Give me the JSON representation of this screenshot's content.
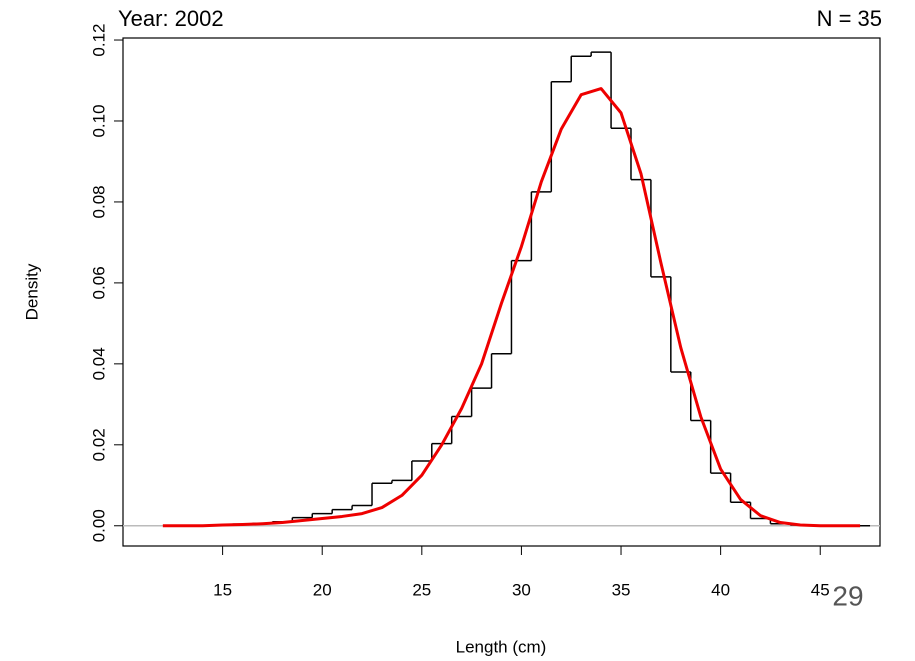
{
  "chart_data": {
    "type": "histogram",
    "title": "Year: 2002",
    "annotation": "N = 35",
    "x_label": "Length (cm)",
    "y_label": "Density",
    "bins": [
      12.5,
      13.5,
      14.5,
      15.5,
      16.5,
      17.5,
      18.5,
      19.5,
      20.5,
      21.5,
      22.5,
      23.5,
      24.5,
      25.5,
      26.5,
      27.5,
      28.5,
      29.5,
      30.5,
      31.5,
      32.5,
      33.5,
      34.5,
      35.5,
      36.5,
      37.5,
      38.5,
      39.5,
      40.5,
      41.5,
      42.5,
      43.5,
      44.5,
      45.5,
      46.5,
      47.5
    ],
    "values": [
      0,
      0,
      0.0002,
      0.0004,
      0.0006,
      0.001,
      0.002,
      0.003,
      0.004,
      0.005,
      0.0105,
      0.0112,
      0.016,
      0.0203,
      0.027,
      0.034,
      0.0425,
      0.0655,
      0.0825,
      0.1097,
      0.116,
      0.117,
      0.0982,
      0.0855,
      0.0615,
      0.038,
      0.026,
      0.013,
      0.0058,
      0.0018,
      0.0005,
      0.0002,
      0,
      0,
      0
    ],
    "color": "#000000",
    "overlay": {
      "type": "line",
      "color": "#ee0000",
      "x": [
        12,
        13,
        14,
        15,
        16,
        17,
        18,
        19,
        20,
        21,
        22,
        23,
        24,
        25,
        26,
        27,
        28,
        29,
        30,
        31,
        32,
        33,
        34,
        35,
        36,
        37,
        38,
        39,
        40,
        41,
        42,
        43,
        44,
        45,
        46,
        47
      ],
      "values": [
        0,
        0,
        0,
        0.0002,
        0.0003,
        0.0005,
        0.0008,
        0.0013,
        0.0018,
        0.0023,
        0.003,
        0.0045,
        0.0075,
        0.0125,
        0.02,
        0.029,
        0.04,
        0.055,
        0.069,
        0.085,
        0.098,
        0.1065,
        0.108,
        0.102,
        0.087,
        0.065,
        0.044,
        0.027,
        0.014,
        0.0065,
        0.0025,
        0.0008,
        0.0002,
        0,
        0,
        0
      ]
    },
    "xlim": [
      10,
      48
    ],
    "xticks": [
      15,
      20,
      25,
      30,
      35,
      40,
      45
    ],
    "ylim": [
      -0.005,
      0.1205
    ],
    "yticks": [
      {
        "value": 0,
        "label": "0.00"
      },
      {
        "value": 0.02,
        "label": "0.02"
      },
      {
        "value": 0.04,
        "label": "0.04"
      },
      {
        "value": 0.06,
        "label": "0.06"
      },
      {
        "value": 0.08,
        "label": "0.08"
      },
      {
        "value": 0.1,
        "label": "0.10"
      },
      {
        "value": 0.12,
        "label": "0.12"
      }
    ]
  },
  "page_number": "29"
}
